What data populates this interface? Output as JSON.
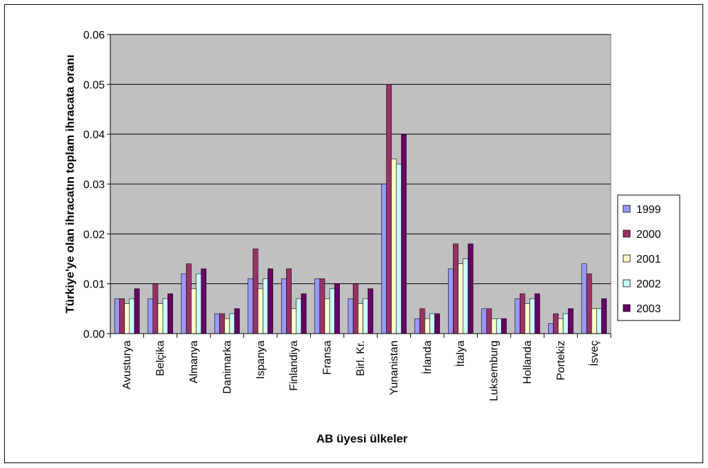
{
  "chart_data": {
    "type": "bar",
    "title": "",
    "xlabel": "AB üyesi ülkeler",
    "ylabel": "Türkiye'ye olan ihracatın toplam ihracata oranı",
    "ylim": [
      0,
      0.06
    ],
    "yticks": [
      "0.00",
      "0.01",
      "0.02",
      "0.03",
      "0.04",
      "0.05",
      "0.06"
    ],
    "grid": true,
    "legend_position": "right",
    "categories": [
      "Avusturya",
      "Belçika",
      "Almanya",
      "Danimarka",
      "Ispanya",
      "Finlandiya",
      "Fransa",
      "Birl. Kr.",
      "Yunanistan",
      "İrlanda",
      "İtalya",
      "Luksemburg",
      "Hollanda",
      "Portekiz",
      "İsveç"
    ],
    "series": [
      {
        "name": "1999",
        "color": "#9999ff",
        "values": [
          0.007,
          0.007,
          0.012,
          0.004,
          0.011,
          0.011,
          0.011,
          0.007,
          0.03,
          0.003,
          0.013,
          0.005,
          0.007,
          0.002,
          0.014
        ]
      },
      {
        "name": "2000",
        "color": "#993366",
        "values": [
          0.007,
          0.01,
          0.014,
          0.004,
          0.017,
          0.013,
          0.011,
          0.01,
          0.05,
          0.005,
          0.018,
          0.005,
          0.008,
          0.004,
          0.012
        ]
      },
      {
        "name": "2001",
        "color": "#ffffcc",
        "values": [
          0.006,
          0.006,
          0.009,
          0.003,
          0.009,
          0.005,
          0.007,
          0.006,
          0.035,
          0.003,
          0.014,
          0.003,
          0.006,
          0.003,
          0.005
        ]
      },
      {
        "name": "2002",
        "color": "#ccffff",
        "values": [
          0.007,
          0.007,
          0.012,
          0.004,
          0.011,
          0.007,
          0.009,
          0.007,
          0.034,
          0.004,
          0.015,
          0.003,
          0.007,
          0.004,
          0.005
        ]
      },
      {
        "name": "2003",
        "color": "#660066",
        "values": [
          0.009,
          0.008,
          0.013,
          0.005,
          0.013,
          0.008,
          0.01,
          0.009,
          0.04,
          0.004,
          0.018,
          0.003,
          0.008,
          0.005,
          0.007
        ]
      }
    ],
    "plot_background": "#c0c0c0"
  }
}
